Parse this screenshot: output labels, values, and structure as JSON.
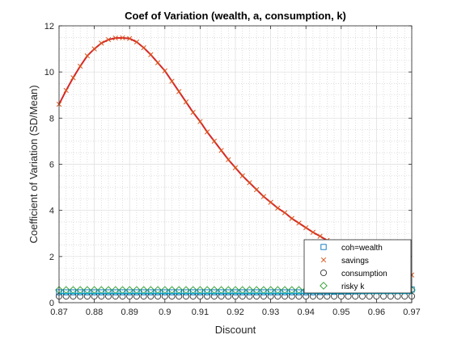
{
  "chart_data": {
    "type": "line",
    "title": "Coef of Variation (wealth, a, consumption, k)",
    "xlabel": "Discount",
    "ylabel": "Coefficient of Variation (SD/Mean)",
    "xlim": [
      0.87,
      0.97
    ],
    "ylim": [
      0,
      12
    ],
    "xticks": [
      0.87,
      0.88,
      0.89,
      0.9,
      0.91,
      0.92,
      0.93,
      0.94,
      0.95,
      0.96,
      0.97
    ],
    "xtick_labels": [
      "0.87",
      "0.88",
      "0.89",
      "0.9",
      "0.91",
      "0.92",
      "0.93",
      "0.94",
      "0.95",
      "0.96",
      "0.97"
    ],
    "yticks": [
      0,
      2,
      4,
      6,
      8,
      10,
      12
    ],
    "ytick_labels": [
      "0",
      "2",
      "4",
      "6",
      "8",
      "10",
      "12"
    ],
    "grid": true,
    "minor_grid": true,
    "legend_position": "bottom-right",
    "x": {
      "start": 0.87,
      "step": 0.002,
      "count": 51
    },
    "series": [
      {
        "name": "coh=wealth",
        "marker": "square",
        "color": "#0072BD",
        "values": [
          0.45,
          0.45,
          0.45,
          0.45,
          0.45,
          0.45,
          0.45,
          0.45,
          0.45,
          0.45,
          0.45,
          0.45,
          0.45,
          0.45,
          0.45,
          0.45,
          0.45,
          0.45,
          0.45,
          0.45,
          0.45,
          0.45,
          0.45,
          0.45,
          0.45,
          0.45,
          0.45,
          0.45,
          0.45,
          0.45,
          0.45,
          0.45,
          0.45,
          0.45,
          0.45,
          0.45,
          0.45,
          0.46,
          0.46,
          0.47,
          0.48,
          0.48,
          0.49,
          0.5,
          0.51,
          0.52,
          0.53,
          0.54,
          0.55,
          0.56,
          0.57
        ]
      },
      {
        "name": "savings",
        "marker": "x",
        "color": "#D95319",
        "line_color": "#D62728",
        "values": [
          8.6,
          9.2,
          9.75,
          10.25,
          10.7,
          11.0,
          11.25,
          11.4,
          11.47,
          11.48,
          11.45,
          11.3,
          11.05,
          10.75,
          10.4,
          10.05,
          9.6,
          9.15,
          8.7,
          8.25,
          7.85,
          7.4,
          7.0,
          6.6,
          6.2,
          5.85,
          5.5,
          5.2,
          4.9,
          4.6,
          4.35,
          4.1,
          3.9,
          3.65,
          3.45,
          3.25,
          3.05,
          2.88,
          2.7,
          2.55,
          2.4,
          2.25,
          2.1,
          1.98,
          1.85,
          1.74,
          1.62,
          1.52,
          1.42,
          1.32,
          1.2
        ]
      },
      {
        "name": "consumption",
        "marker": "circle",
        "color": "#333333",
        "values": [
          0.28,
          0.28,
          0.28,
          0.28,
          0.28,
          0.28,
          0.28,
          0.28,
          0.28,
          0.28,
          0.28,
          0.28,
          0.28,
          0.28,
          0.28,
          0.28,
          0.28,
          0.28,
          0.28,
          0.28,
          0.28,
          0.28,
          0.28,
          0.28,
          0.28,
          0.28,
          0.28,
          0.28,
          0.28,
          0.28,
          0.28,
          0.28,
          0.28,
          0.28,
          0.28,
          0.28,
          0.28,
          0.28,
          0.28,
          0.28,
          0.28,
          0.28,
          0.28,
          0.28,
          0.28,
          0.28,
          0.28,
          0.28,
          0.28,
          0.28,
          0.28
        ]
      },
      {
        "name": "risky k",
        "marker": "diamond",
        "color": "#2CA02C",
        "values": [
          0.55,
          0.55,
          0.55,
          0.55,
          0.55,
          0.55,
          0.55,
          0.55,
          0.55,
          0.55,
          0.55,
          0.55,
          0.55,
          0.55,
          0.55,
          0.55,
          0.55,
          0.55,
          0.55,
          0.55,
          0.55,
          0.55,
          0.55,
          0.55,
          0.55,
          0.55,
          0.55,
          0.55,
          0.55,
          0.55,
          0.55,
          0.55,
          0.55,
          0.55,
          0.55,
          0.55,
          0.55,
          0.55,
          0.55,
          0.55,
          0.55,
          0.55,
          0.55,
          0.55,
          0.55,
          0.55,
          0.55,
          0.55,
          0.55,
          0.55,
          0.55
        ]
      }
    ],
    "summary_line": {
      "color": "#00A2C7",
      "values": [
        0.4,
        0.4
      ]
    }
  }
}
